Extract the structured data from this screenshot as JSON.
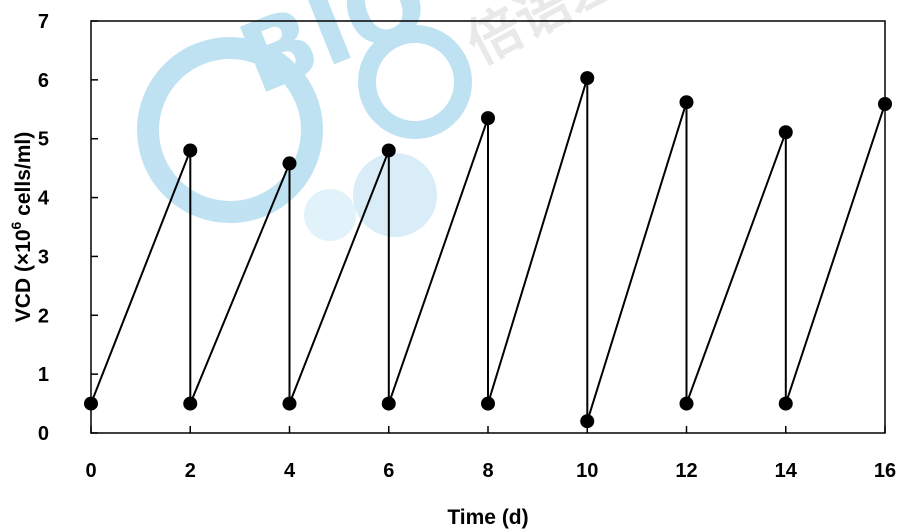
{
  "chart_data": {
    "type": "line",
    "xlabel": "Time (d)",
    "ylabel_parts": [
      "VCD (×10",
      "6",
      " cells/ml)"
    ],
    "xlim": [
      0,
      16
    ],
    "ylim": [
      0,
      7
    ],
    "x_ticks": [
      0,
      2,
      4,
      6,
      8,
      10,
      12,
      14,
      16
    ],
    "y_ticks": [
      0,
      1,
      2,
      3,
      4,
      5,
      6,
      7
    ],
    "grid": false,
    "legend": "none",
    "line_color": "#000000",
    "series": [
      {
        "x": [
          0,
          2,
          2,
          4,
          4,
          6,
          6,
          8,
          8,
          10,
          10,
          12,
          12,
          14,
          14,
          16
        ],
        "y": [
          0.5,
          4.8,
          0.5,
          4.58,
          0.5,
          4.8,
          0.5,
          5.35,
          0.5,
          6.03,
          0.2,
          5.62,
          0.5,
          5.11,
          0.5,
          5.59
        ]
      }
    ]
  },
  "watermark": {
    "logo_text": "BIO",
    "cjk_text": "倍语差",
    "color": "#8ccbea"
  }
}
